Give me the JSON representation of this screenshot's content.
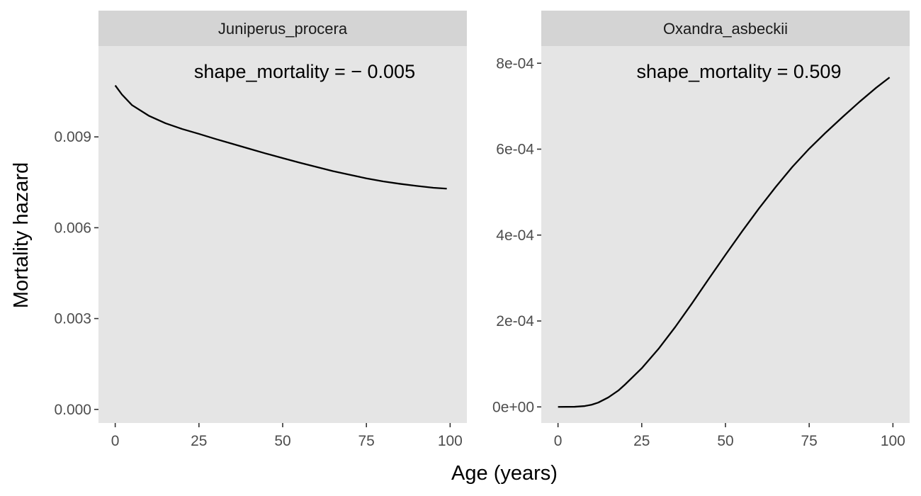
{
  "chart_data": {
    "type": "line",
    "xlabel": "Age (years)",
    "ylabel": "Mortality hazard",
    "colors": {
      "panel_background": "#e5e5e5",
      "strip_background": "#d4d4d4",
      "line": "#000000",
      "tick_text": "#4d4d4d"
    },
    "grid": false,
    "legend": "none",
    "panels": [
      {
        "title": "Juniperus_procera",
        "annotation": "shape_mortality = − 0.005",
        "xlim": [
          -5,
          105
        ],
        "ylim": [
          -0.00045,
          0.012
        ],
        "x_ticks": [
          0,
          25,
          50,
          75,
          100
        ],
        "x_tick_labels": [
          "0",
          "25",
          "50",
          "75",
          "100"
        ],
        "y_ticks": [
          0,
          0.003,
          0.006,
          0.009
        ],
        "y_tick_labels": [
          "0.000",
          "0.003",
          "0.006",
          "0.009"
        ],
        "series": [
          {
            "x": [
              0,
              2,
              5,
              10,
              15,
              20,
              25,
              30,
              35,
              40,
              45,
              50,
              55,
              60,
              65,
              70,
              75,
              80,
              85,
              90,
              95,
              99
            ],
            "y": [
              0.0107,
              0.0104,
              0.01005,
              0.0097,
              0.00945,
              0.00926,
              0.0091,
              0.00893,
              0.00877,
              0.00861,
              0.00845,
              0.0083,
              0.00815,
              0.00801,
              0.00787,
              0.00775,
              0.00763,
              0.00753,
              0.00745,
              0.00738,
              0.00732,
              0.00729
            ]
          }
        ]
      },
      {
        "title": "Oxandra_asbeckii",
        "annotation": "shape_mortality = 0.509",
        "xlim": [
          -5,
          105
        ],
        "ylim": [
          -3.75e-05,
          0.00084
        ],
        "x_ticks": [
          0,
          25,
          50,
          75,
          100
        ],
        "x_tick_labels": [
          "0",
          "25",
          "50",
          "75",
          "100"
        ],
        "y_ticks": [
          0,
          0.0002,
          0.0004,
          0.0006,
          0.0008
        ],
        "y_tick_labels": [
          "0e+00",
          "2e-04",
          "4e-04",
          "6e-04",
          "8e-04"
        ],
        "series": [
          {
            "x": [
              0,
              5,
              8,
              10,
              12,
              15,
              18,
              20,
              25,
              30,
              35,
              40,
              45,
              50,
              55,
              60,
              65,
              70,
              75,
              80,
              85,
              90,
              95,
              99
            ],
            "y": [
              0.0,
              3e-07,
              2e-06,
              5e-06,
              1e-05,
              2.2e-05,
              3.8e-05,
              5.2e-05,
              9e-05,
              0.000135,
              0.000186,
              0.000241,
              0.000298,
              0.000354,
              0.000409,
              0.000462,
              0.000512,
              0.000559,
              0.000601,
              0.000639,
              0.000675,
              0.00071,
              0.000743,
              0.000767
            ]
          }
        ]
      }
    ]
  }
}
